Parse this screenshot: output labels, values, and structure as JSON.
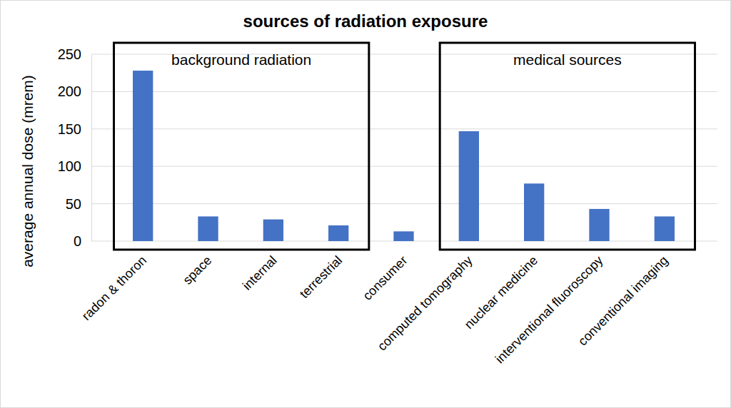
{
  "chart_data": {
    "type": "bar",
    "title": "sources of radiation exposure",
    "y_label": "average annual dose (mrem)",
    "categories": [
      "radon & thoron",
      "space",
      "internal",
      "terrestrial",
      "consumer",
      "computed tomography",
      "nuclear medicine",
      "interventional fluoroscopy",
      "conventional imaging"
    ],
    "values": [
      228,
      33,
      29,
      21,
      13,
      147,
      77,
      43,
      33
    ],
    "color": "#4472c4",
    "ylim": [
      0,
      250
    ],
    "yticks": [
      0,
      50,
      100,
      150,
      200,
      250
    ],
    "grid": true,
    "annotations": [
      {
        "text": "background radiation",
        "categories": [
          "radon & thoron",
          "space",
          "internal",
          "terrestrial"
        ]
      },
      {
        "text": "medical sources",
        "categories": [
          "computed tomography",
          "nuclear medicine",
          "interventional fluoroscopy",
          "conventional imaging"
        ]
      }
    ]
  }
}
